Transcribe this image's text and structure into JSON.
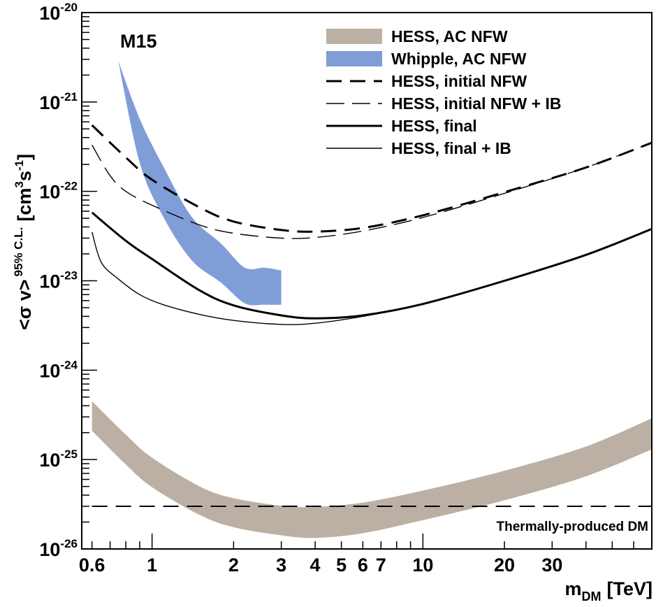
{
  "chart_data": {
    "type": "line",
    "xlabel": "m",
    "xlabel_sub": "DM",
    "xlabel_unit": "[TeV]",
    "ylabel": "<σ v>",
    "ylabel_sup": "95% C.L.",
    "ylabel_unit_pre": "[cm",
    "ylabel_unit_sup1": "3",
    "ylabel_unit_mid": "s",
    "ylabel_unit_sup2": "-1",
    "ylabel_unit_post": "]",
    "x_scale": "log",
    "y_scale": "log",
    "xlim": [
      0.55,
      70
    ],
    "ylim": [
      1e-26,
      1e-20
    ],
    "x_ticks": [
      {
        "value": 0.6,
        "label": "0.6"
      },
      {
        "value": 1,
        "label": "1"
      },
      {
        "value": 2,
        "label": "2"
      },
      {
        "value": 3,
        "label": "3"
      },
      {
        "value": 4,
        "label": "4"
      },
      {
        "value": 5,
        "label": "5"
      },
      {
        "value": 6,
        "label": "6"
      },
      {
        "value": 7,
        "label": "7"
      },
      {
        "value": 10,
        "label": "10"
      },
      {
        "value": 20,
        "label": "20"
      },
      {
        "value": 30,
        "label": "30"
      }
    ],
    "y_ticks": [
      {
        "exp": -26,
        "base": "10",
        "sup": "-26"
      },
      {
        "exp": -25,
        "base": "10",
        "sup": "-25"
      },
      {
        "exp": -24,
        "base": "10",
        "sup": "-24"
      },
      {
        "exp": -23,
        "base": "10",
        "sup": "-23"
      },
      {
        "exp": -22,
        "base": "10",
        "sup": "-22"
      },
      {
        "exp": -21,
        "base": "10",
        "sup": "-21"
      },
      {
        "exp": -20,
        "base": "10",
        "sup": "-20"
      }
    ],
    "legend_position": "top-right",
    "annotations": {
      "panel_label": "M15",
      "thermal_label": "Thermally-produced DM"
    },
    "colors": {
      "hess_band": "#bcb0a4",
      "whipple_band": "#7f9dd6",
      "line": "#000000"
    },
    "series": [
      {
        "name": "HESS, AC NFW",
        "kind": "band",
        "color": "#bcb0a4",
        "x": [
          0.6,
          0.8,
          1,
          1.5,
          2,
          3,
          4,
          6,
          10,
          20,
          40,
          70
        ],
        "upper": [
          4.5e-25,
          1.9e-25,
          1.05e-25,
          5e-26,
          3.7e-26,
          3.05e-26,
          2.95e-26,
          3.3e-26,
          4.5e-26,
          7.5e-26,
          1.4e-25,
          2.9e-25
        ],
        "lower": [
          2.1e-25,
          8.8e-26,
          4.9e-26,
          2.4e-26,
          1.75e-26,
          1.42e-26,
          1.33e-26,
          1.5e-26,
          2.1e-26,
          3.5e-26,
          6.5e-26,
          1.3e-25
        ]
      },
      {
        "name": "Whipple, AC NFW",
        "kind": "band",
        "color": "#7f9dd6",
        "x": [
          0.75,
          0.9,
          1.1,
          1.4,
          1.8,
          2.2,
          2.6,
          3
        ],
        "upper": [
          2.9e-21,
          6.5e-22,
          1.9e-22,
          5.2e-23,
          2.6e-23,
          1.4e-23,
          1.4e-23,
          1.3e-23
        ],
        "lower": [
          2.9e-21,
          2.1e-22,
          5.2e-23,
          1.7e-23,
          9.5e-24,
          5.6e-24,
          5.4e-24,
          5.4e-24
        ]
      },
      {
        "name": "HESS, initial NFW",
        "kind": "line",
        "style": "long-dash",
        "width": 3,
        "x": [
          0.6,
          0.8,
          1,
          1.5,
          2,
          3,
          4,
          6,
          10,
          20,
          40,
          70
        ],
        "y": [
          5.5e-22,
          2.4e-22,
          1.35e-22,
          6.6e-23,
          4.6e-23,
          3.7e-23,
          3.55e-23,
          3.9e-23,
          5.4e-23,
          9.8e-23,
          1.85e-22,
          3.5e-22
        ]
      },
      {
        "name": "HESS, initial NFW + IB",
        "kind": "line",
        "style": "long-dash",
        "width": 1.4,
        "x": [
          0.6,
          0.7,
          0.8,
          1,
          1.5,
          2,
          3,
          4,
          6,
          10,
          20,
          40,
          70
        ],
        "y": [
          3.3e-22,
          1.5e-22,
          1e-22,
          7e-23,
          4.2e-23,
          3.4e-23,
          3e-23,
          3.05e-23,
          3.6e-23,
          5.1e-23,
          9.5e-23,
          1.85e-22,
          3.5e-22
        ]
      },
      {
        "name": "HESS, final",
        "kind": "line",
        "style": "solid",
        "width": 3,
        "x": [
          0.6,
          0.8,
          1,
          1.5,
          2,
          3,
          4,
          6,
          10,
          20,
          40,
          70
        ],
        "y": [
          5.8e-23,
          2.8e-23,
          1.75e-23,
          7.8e-24,
          5.3e-24,
          4.1e-24,
          3.8e-24,
          4.1e-24,
          5.5e-24,
          1e-23,
          1.95e-23,
          3.8e-23
        ]
      },
      {
        "name": "HESS, final + IB",
        "kind": "line",
        "style": "solid",
        "width": 1.4,
        "x": [
          0.6,
          0.65,
          0.75,
          0.9,
          1.1,
          1.5,
          2,
          3,
          4,
          6,
          10,
          20,
          40,
          70
        ],
        "y": [
          3.5e-23,
          1.6e-23,
          1.05e-23,
          7e-24,
          5.4e-24,
          4.2e-24,
          3.6e-24,
          3.25e-24,
          3.35e-24,
          4e-24,
          5.5e-24,
          1e-23,
          1.95e-23,
          3.8e-23
        ]
      },
      {
        "kind": "hline",
        "style": "long-dash",
        "width": 2,
        "y": 3e-26,
        "x_from": 0.6,
        "x_to": 70
      }
    ]
  }
}
